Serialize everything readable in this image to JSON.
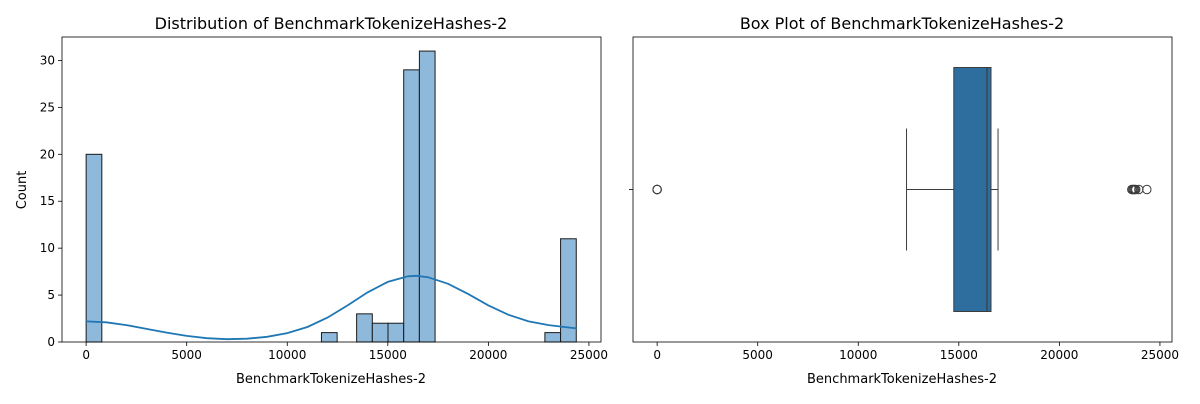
{
  "chart_data": [
    {
      "type": "bar",
      "title": "Distribution of BenchmarkTokenizeHashes-2",
      "xlabel": "BenchmarkTokenizeHashes-2",
      "ylabel": "Count",
      "xlim": [
        -1200,
        25600
      ],
      "ylim": [
        0,
        32.5
      ],
      "xticks": [
        0,
        5000,
        10000,
        15000,
        20000,
        25000
      ],
      "yticks": [
        0,
        5,
        10,
        15,
        20,
        25,
        30
      ],
      "grid": false,
      "colors": {
        "bar_fill": "#8fb9db",
        "bar_edge": "#1a1a1a",
        "kde": "#1f77b4"
      },
      "bins": [
        {
          "x0": 0,
          "x1": 780,
          "count": 20
        },
        {
          "x0": 11700,
          "x1": 12480,
          "count": 1
        },
        {
          "x0": 13450,
          "x1": 14230,
          "count": 3
        },
        {
          "x0": 14230,
          "x1": 15010,
          "count": 2
        },
        {
          "x0": 15010,
          "x1": 15790,
          "count": 2
        },
        {
          "x0": 15790,
          "x1": 16570,
          "count": 29
        },
        {
          "x0": 16570,
          "x1": 17350,
          "count": 31
        },
        {
          "x0": 22810,
          "x1": 23590,
          "count": 1
        },
        {
          "x0": 23590,
          "x1": 24370,
          "count": 11
        }
      ],
      "kde": {
        "x": [
          0,
          1000,
          2000,
          3000,
          4000,
          5000,
          6000,
          7000,
          8000,
          9000,
          10000,
          11000,
          12000,
          13000,
          14000,
          15000,
          16000,
          16400,
          17000,
          18000,
          19000,
          20000,
          21000,
          22000,
          23000,
          24000,
          24400
        ],
        "y": [
          2.2,
          2.1,
          1.8,
          1.4,
          1.0,
          0.65,
          0.4,
          0.3,
          0.35,
          0.55,
          0.95,
          1.6,
          2.6,
          3.9,
          5.3,
          6.4,
          7.0,
          7.05,
          6.9,
          6.2,
          5.1,
          3.9,
          2.9,
          2.2,
          1.8,
          1.55,
          1.45
        ]
      }
    },
    {
      "type": "box",
      "title": "Box Plot of BenchmarkTokenizeHashes-2",
      "xlabel": "BenchmarkTokenizeHashes-2",
      "xlim": [
        -1200,
        25600
      ],
      "xticks": [
        0,
        5000,
        10000,
        15000,
        20000,
        25000
      ],
      "colors": {
        "box_fill": "#2e6e9e",
        "line": "#3d3d3d"
      },
      "box": {
        "whisker_low": 12400,
        "q1": 14750,
        "median": 16400,
        "q3": 16600,
        "whisker_high": 16950
      },
      "outliers": [
        0,
        0,
        0,
        23600,
        23650,
        23700,
        23750,
        23800,
        23950,
        24350
      ]
    }
  ]
}
